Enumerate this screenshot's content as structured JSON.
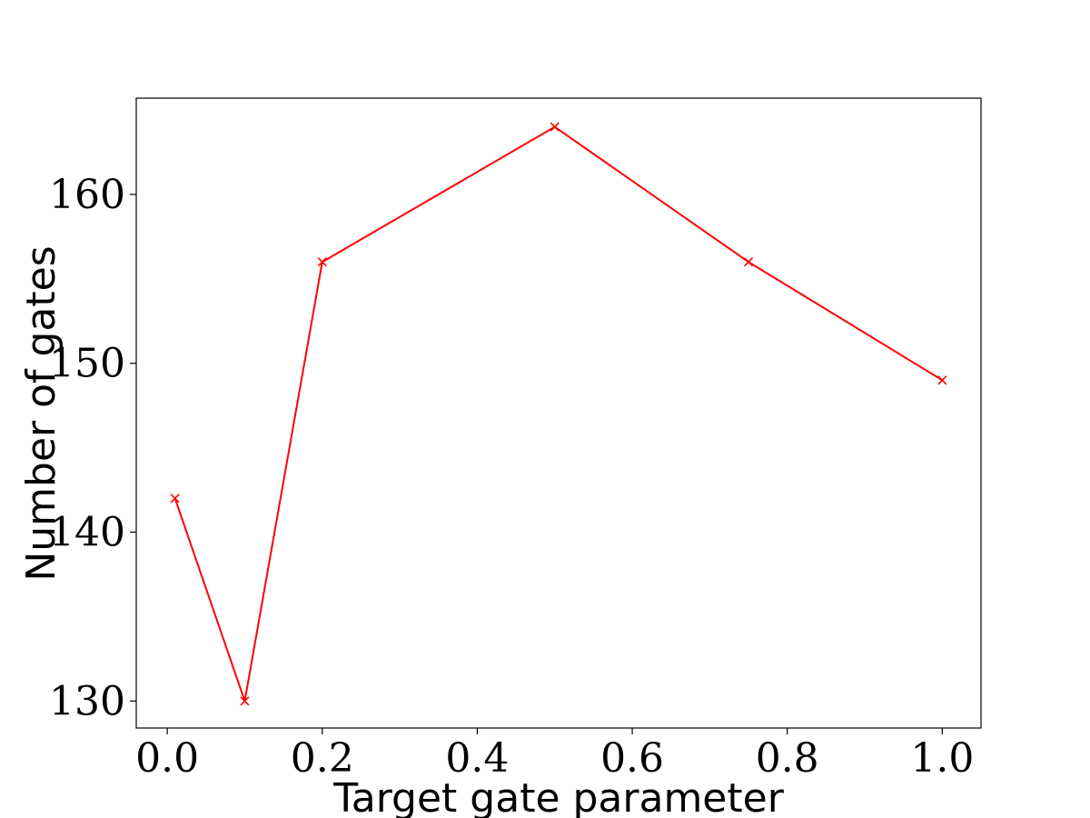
{
  "chart_data": {
    "type": "line",
    "title": "",
    "xlabel": "Target gate parameter",
    "ylabel": "Number of gates",
    "xlim": [
      -0.04,
      1.05
    ],
    "ylim": [
      128.4,
      165.7
    ],
    "x_ticks": [
      0.0,
      0.2,
      0.4,
      0.6,
      0.8,
      1.0
    ],
    "x_tick_labels": [
      "0.0",
      "0.2",
      "0.4",
      "0.6",
      "0.8",
      "1.0"
    ],
    "y_ticks": [
      130,
      140,
      150,
      160
    ],
    "y_tick_labels": [
      "130",
      "140",
      "150",
      "160"
    ],
    "grid": false,
    "legend": "none",
    "series": [
      {
        "color": "#ff0000",
        "marker": "x",
        "x": [
          0.01,
          0.1,
          0.2,
          0.5,
          0.75,
          1.0
        ],
        "y": [
          142,
          130,
          156,
          164,
          156,
          149
        ]
      }
    ]
  }
}
